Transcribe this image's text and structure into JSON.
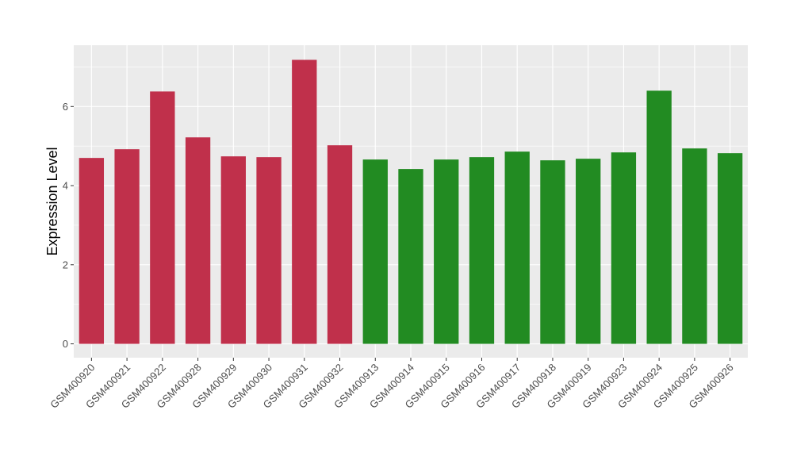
{
  "chart_data": {
    "type": "bar",
    "title": "",
    "xlabel": "",
    "ylabel": "Expression Level",
    "ylim": [
      -0.35,
      7.55
    ],
    "yticks": [
      0,
      2,
      4,
      6
    ],
    "grid": true,
    "legend": "none",
    "categories": [
      "GSM400920",
      "GSM400921",
      "GSM400922",
      "GSM400928",
      "GSM400929",
      "GSM400930",
      "GSM400931",
      "GSM400932",
      "GSM400913",
      "GSM400914",
      "GSM400915",
      "GSM400916",
      "GSM400917",
      "GSM400918",
      "GSM400919",
      "GSM400923",
      "GSM400924",
      "GSM400925",
      "GSM400926"
    ],
    "values": [
      4.7,
      4.92,
      6.38,
      5.22,
      4.74,
      4.72,
      7.18,
      5.02,
      4.66,
      4.42,
      4.66,
      4.72,
      4.86,
      4.64,
      4.68,
      4.84,
      6.4,
      4.94,
      4.82
    ],
    "bar_colors": [
      "#c0304b",
      "#c0304b",
      "#c0304b",
      "#c0304b",
      "#c0304b",
      "#c0304b",
      "#c0304b",
      "#c0304b",
      "#228b22",
      "#228b22",
      "#228b22",
      "#228b22",
      "#228b22",
      "#228b22",
      "#228b22",
      "#228b22",
      "#228b22",
      "#228b22",
      "#228b22"
    ],
    "panel_color": "#ebebeb",
    "grid_color": "#ffffff"
  }
}
